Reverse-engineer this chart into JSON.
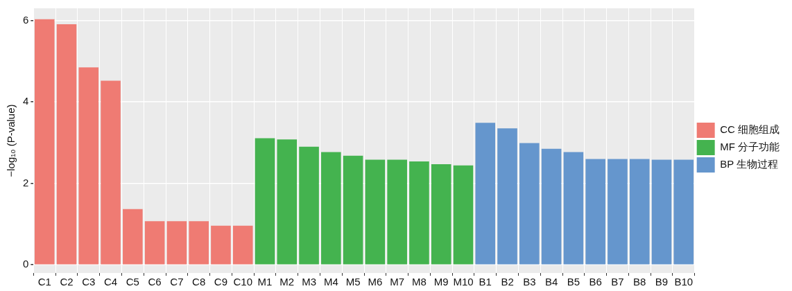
{
  "chart_data": {
    "type": "bar",
    "ylabel": "−log₁₀ (P-value)",
    "categories": [
      "C1",
      "C2",
      "C3",
      "C4",
      "C5",
      "C6",
      "C7",
      "C8",
      "C9",
      "C10",
      "M1",
      "M2",
      "M3",
      "M4",
      "M5",
      "M6",
      "M7",
      "M8",
      "M9",
      "M10",
      "B1",
      "B2",
      "B3",
      "B4",
      "B5",
      "B6",
      "B7",
      "B8",
      "B9",
      "B10"
    ],
    "series": [
      {
        "name": "CC 细胞组成",
        "color": "#ef7b73",
        "values": [
          6.03,
          5.91,
          4.85,
          4.52,
          1.37,
          1.07,
          1.07,
          1.07,
          0.96,
          0.96,
          null,
          null,
          null,
          null,
          null,
          null,
          null,
          null,
          null,
          null,
          null,
          null,
          null,
          null,
          null,
          null,
          null,
          null,
          null,
          null
        ]
      },
      {
        "name": "MF 分子功能",
        "color": "#44b34f",
        "values": [
          null,
          null,
          null,
          null,
          null,
          null,
          null,
          null,
          null,
          null,
          3.11,
          3.08,
          2.9,
          2.77,
          2.68,
          2.58,
          2.58,
          2.54,
          2.47,
          2.44,
          null,
          null,
          null,
          null,
          null,
          null,
          null,
          null,
          null,
          null
        ]
      },
      {
        "name": "BP 生物过程",
        "color": "#6596cd",
        "values": [
          null,
          null,
          null,
          null,
          null,
          null,
          null,
          null,
          null,
          null,
          null,
          null,
          null,
          null,
          null,
          null,
          null,
          null,
          null,
          null,
          3.49,
          3.35,
          2.99,
          2.85,
          2.77,
          2.6,
          2.6,
          2.6,
          2.58,
          2.58
        ]
      }
    ],
    "ylim": [
      -0.2,
      6.3
    ],
    "yticks": [
      0,
      2,
      4,
      6
    ],
    "grid": true,
    "legend": "right"
  }
}
